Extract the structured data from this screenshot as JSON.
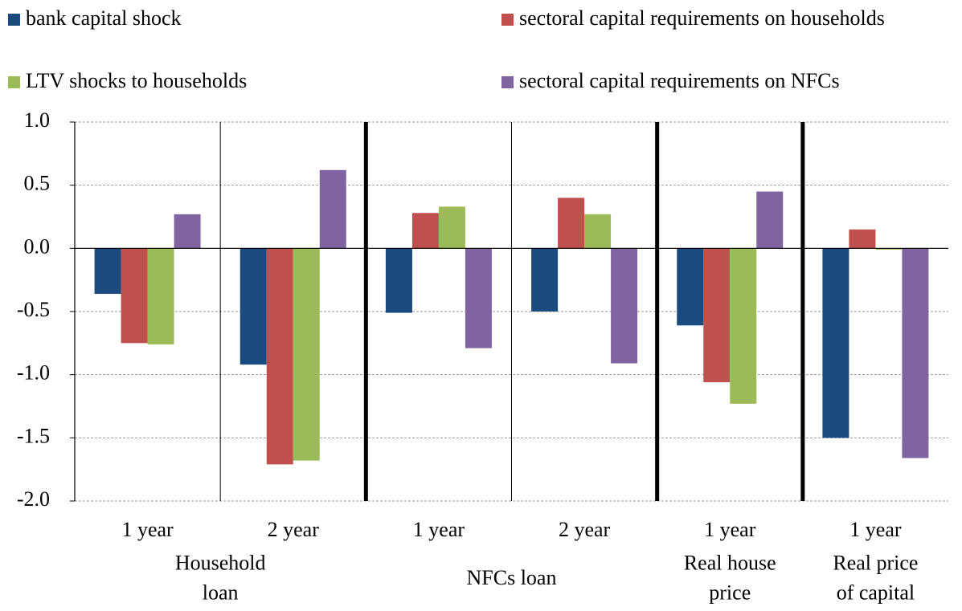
{
  "chart_data": {
    "type": "bar",
    "groups": [
      {
        "label": [
          "Household",
          "loan"
        ],
        "categories": [
          "1 year",
          "2 year"
        ]
      },
      {
        "label": [
          "NFCs loan"
        ],
        "categories": [
          "1 year",
          "2 year"
        ]
      },
      {
        "label": [
          "Real house",
          "price"
        ],
        "categories": [
          "1 year"
        ]
      },
      {
        "label": [
          "Real price",
          "of capital"
        ],
        "categories": [
          "1 year"
        ]
      }
    ],
    "series": [
      {
        "name": "bank capital shock",
        "color": "#1a4a7e",
        "values": [
          -0.36,
          -0.92,
          -0.51,
          -0.5,
          -0.61,
          -1.5
        ]
      },
      {
        "name": "sectoral capital requirements on households",
        "color": "#c0504d",
        "values": [
          -0.75,
          -1.71,
          0.28,
          0.4,
          -1.06,
          0.15
        ]
      },
      {
        "name": "LTV shocks to households",
        "color": "#9bbb59",
        "values": [
          -0.76,
          -1.68,
          0.33,
          0.27,
          -1.23,
          -0.01
        ]
      },
      {
        "name": "sectoral capital requirements on NFCs",
        "color": "#8064a2",
        "values": [
          0.27,
          0.62,
          -0.79,
          -0.91,
          0.45,
          -1.66
        ]
      }
    ],
    "ylim": [
      -2.0,
      1.0
    ],
    "yticks": [
      {
        "value": -2.0,
        "label": "-2.0"
      },
      {
        "value": -1.5,
        "label": "-1.5"
      },
      {
        "value": -1.0,
        "label": "-1.0"
      },
      {
        "value": -0.5,
        "label": "-0.5"
      },
      {
        "value": 0.0,
        "label": "0.0"
      },
      {
        "value": 0.5,
        "label": "0.5"
      },
      {
        "value": 1.0,
        "label": "1.0"
      }
    ],
    "grid": true
  }
}
